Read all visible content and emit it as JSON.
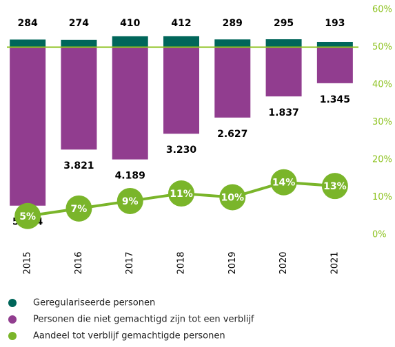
{
  "chart_data": {
    "type": "bar",
    "categories": [
      "2015",
      "2016",
      "2017",
      "2018",
      "2019",
      "2020",
      "2021"
    ],
    "ylim": [
      -7000,
      1400
    ],
    "series": [
      {
        "name": "Geregulariseerde personen",
        "color": "#00665a",
        "values": [
          284,
          274,
          410,
          412,
          289,
          295,
          193
        ]
      },
      {
        "name": "Personen die niet gemachtigd zijn tot een verblijf",
        "color": "#913d8f",
        "values": [
          5914,
          3821,
          4189,
          3230,
          2627,
          1837,
          1345
        ],
        "value_labels": [
          "5.914",
          "3.821",
          "4.189",
          "3.230",
          "2.627",
          "1.837",
          "1.345"
        ]
      },
      {
        "name": "Aandeel tot verblijf gemachtigde personen",
        "color": "#7ab52a",
        "axis": "y2",
        "type": "line",
        "values": [
          5,
          7,
          9,
          11,
          10,
          14,
          13
        ],
        "value_labels": [
          "5%",
          "7%",
          "9%",
          "11%",
          "10%",
          "14%",
          "13%"
        ]
      }
    ],
    "y2lim": [
      0,
      60
    ],
    "y2ticks": [
      {
        "value": 0,
        "label": "0%"
      },
      {
        "value": 10,
        "label": "10%"
      },
      {
        "value": 20,
        "label": "20%"
      },
      {
        "value": 30,
        "label": "30%"
      },
      {
        "value": 40,
        "label": "40%"
      },
      {
        "value": 50,
        "label": "50%"
      },
      {
        "value": 60,
        "label": "60%"
      }
    ],
    "y2_color": "#8dc21f"
  }
}
